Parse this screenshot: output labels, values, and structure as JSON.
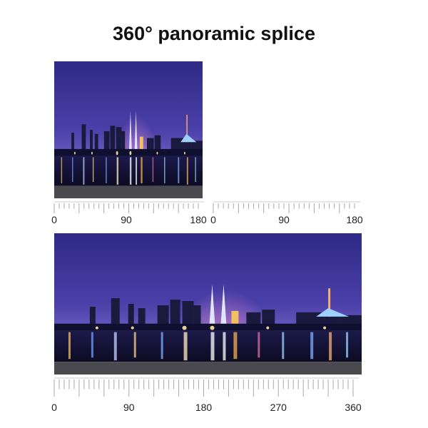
{
  "title": "360° panoramic splice",
  "rulers": [
    {
      "labels": [
        0,
        90,
        180
      ]
    },
    {
      "labels": [
        0,
        90,
        180
      ]
    },
    {
      "labels": [
        0,
        90,
        180,
        270,
        360
      ]
    }
  ]
}
